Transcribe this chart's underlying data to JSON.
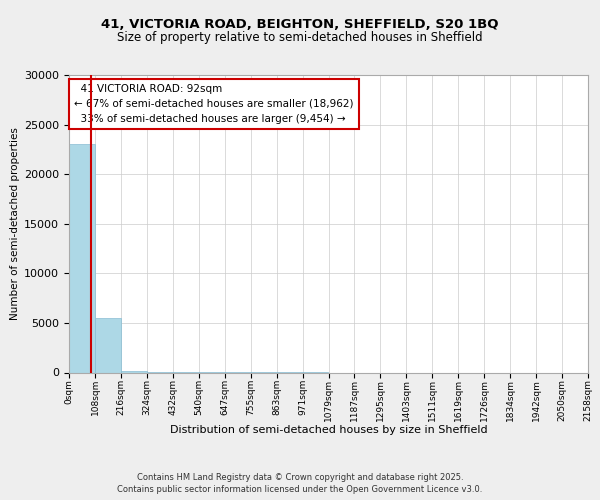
{
  "title_line1": "41, VICTORIA ROAD, BEIGHTON, SHEFFIELD, S20 1BQ",
  "title_line2": "Size of property relative to semi-detached houses in Sheffield",
  "xlabel": "Distribution of semi-detached houses by size in Sheffield",
  "ylabel": "Number of semi-detached properties",
  "annotation_title": "41 VICTORIA ROAD: 92sqm",
  "annotation_line2": "← 67% of semi-detached houses are smaller (18,962)",
  "annotation_line3": "33% of semi-detached houses are larger (9,454) →",
  "footer": "Contains HM Land Registry data © Crown copyright and database right 2025.\nContains public sector information licensed under the Open Government Licence v3.0.",
  "bin_edges": [
    0,
    108,
    216,
    324,
    432,
    540,
    647,
    755,
    863,
    971,
    1079,
    1187,
    1295,
    1403,
    1511,
    1619,
    1726,
    1834,
    1942,
    2050,
    2158
  ],
  "bin_labels": [
    "0sqm",
    "108sqm",
    "216sqm",
    "324sqm",
    "432sqm",
    "540sqm",
    "647sqm",
    "755sqm",
    "863sqm",
    "971sqm",
    "1079sqm",
    "1187sqm",
    "1295sqm",
    "1403sqm",
    "1511sqm",
    "1619sqm",
    "1726sqm",
    "1834sqm",
    "1942sqm",
    "2050sqm",
    "2158sqm"
  ],
  "bar_heights": [
    23000,
    5500,
    120,
    40,
    15,
    8,
    4,
    2,
    1,
    1,
    0,
    0,
    0,
    0,
    0,
    0,
    0,
    0,
    0,
    0
  ],
  "property_sqm": 92,
  "vline_color": "#cc0000",
  "annotation_box_edgecolor": "#cc0000",
  "ylim": [
    0,
    30000
  ],
  "yticks": [
    0,
    5000,
    10000,
    15000,
    20000,
    25000,
    30000
  ],
  "bar_color": "#add8e6",
  "bar_edgecolor": "#89bdd3",
  "background_color": "#eeeeee",
  "plot_bg_color": "#ffffff",
  "grid_color": "#cccccc"
}
